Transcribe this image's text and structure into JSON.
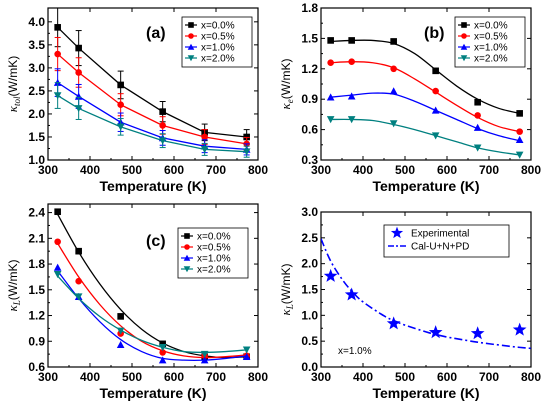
{
  "chart_data": [
    {
      "id": "a",
      "type": "scatter",
      "panel_label": "(a)",
      "xlabel": "Temperature (K)",
      "ylabel": "κ_tol(W/mK)",
      "ylabel_main": "κ",
      "ylabel_sub": "tol",
      "ylabel_unit": "(W/mK)",
      "xlim": [
        300,
        800
      ],
      "ylim": [
        1.0,
        4.3
      ],
      "xticks": [
        "300",
        "400",
        "500",
        "600",
        "700",
        "800"
      ],
      "yticks": [
        "1.0",
        "1.5",
        "2.0",
        "2.5",
        "3.0",
        "3.5",
        "4.0"
      ],
      "legend_position": "top-right",
      "error_bars": true,
      "series": [
        {
          "name": "x=0.0%",
          "color": "#000000",
          "marker": "square",
          "x": [
            323,
            373,
            473,
            573,
            673,
            773
          ],
          "y": [
            3.88,
            3.43,
            2.63,
            2.05,
            1.6,
            1.5
          ],
          "err": [
            0.42,
            0.38,
            0.3,
            0.22,
            0.18,
            0.16
          ]
        },
        {
          "name": "x=0.5%",
          "color": "#ff0000",
          "marker": "circle",
          "x": [
            323,
            373,
            473,
            573,
            673,
            773
          ],
          "y": [
            3.3,
            2.9,
            2.2,
            1.75,
            1.5,
            1.35
          ],
          "err": [
            0.36,
            0.32,
            0.24,
            0.19,
            0.16,
            0.14
          ]
        },
        {
          "name": "x=1.0%",
          "color": "#0000ff",
          "marker": "triangle-up",
          "x": [
            323,
            373,
            473,
            573,
            673,
            773
          ],
          "y": [
            2.68,
            2.38,
            1.82,
            1.48,
            1.3,
            1.23
          ],
          "err": [
            0.3,
            0.26,
            0.2,
            0.16,
            0.14,
            0.12
          ]
        },
        {
          "name": "x=2.0%",
          "color": "#008080",
          "marker": "triangle-down",
          "x": [
            323,
            373,
            473,
            573,
            673,
            773
          ],
          "y": [
            2.4,
            2.12,
            1.72,
            1.42,
            1.23,
            1.18
          ],
          "err": [
            0.28,
            0.24,
            0.18,
            0.15,
            0.13,
            0.12
          ]
        }
      ]
    },
    {
      "id": "b",
      "type": "scatter",
      "panel_label": "(b)",
      "xlabel": "Temperature (K)",
      "ylabel": "κe(W/mK)",
      "ylabel_main": "κ",
      "ylabel_sub": "e",
      "ylabel_unit": "(W/mK)",
      "xlim": [
        300,
        800
      ],
      "ylim": [
        0.3,
        1.8
      ],
      "xticks": [
        "300",
        "400",
        "500",
        "600",
        "700",
        "800"
      ],
      "yticks": [
        "0.3",
        "0.6",
        "0.9",
        "1.2",
        "1.5",
        "1.8"
      ],
      "legend_position": "top-right",
      "series": [
        {
          "name": "x=0.0%",
          "color": "#000000",
          "marker": "square",
          "x": [
            323,
            373,
            473,
            573,
            673,
            773
          ],
          "y": [
            1.48,
            1.48,
            1.47,
            1.18,
            0.87,
            0.76
          ],
          "fit": [
            [
              323,
              1.47
            ],
            [
              373,
              1.48
            ],
            [
              423,
              1.48
            ],
            [
              473,
              1.45
            ],
            [
              523,
              1.35
            ],
            [
              573,
              1.19
            ],
            [
              623,
              1.03
            ],
            [
              673,
              0.9
            ],
            [
              723,
              0.81
            ],
            [
              773,
              0.76
            ]
          ]
        },
        {
          "name": "x=0.5%",
          "color": "#ff0000",
          "marker": "circle",
          "x": [
            323,
            373,
            473,
            573,
            673,
            773
          ],
          "y": [
            1.26,
            1.27,
            1.2,
            0.98,
            0.74,
            0.58
          ],
          "fit": [
            [
              323,
              1.26
            ],
            [
              373,
              1.27
            ],
            [
              423,
              1.26
            ],
            [
              473,
              1.21
            ],
            [
              523,
              1.1
            ],
            [
              573,
              0.97
            ],
            [
              623,
              0.84
            ],
            [
              673,
              0.72
            ],
            [
              723,
              0.63
            ],
            [
              773,
              0.58
            ]
          ]
        },
        {
          "name": "x=1.0%",
          "color": "#0000ff",
          "marker": "triangle-up",
          "x": [
            323,
            373,
            473,
            573,
            673,
            773
          ],
          "y": [
            0.92,
            0.93,
            0.98,
            0.79,
            0.62,
            0.5
          ],
          "fit": [
            [
              323,
              0.92
            ],
            [
              373,
              0.94
            ],
            [
              423,
              0.96
            ],
            [
              473,
              0.95
            ],
            [
              523,
              0.88
            ],
            [
              573,
              0.79
            ],
            [
              623,
              0.7
            ],
            [
              673,
              0.61
            ],
            [
              723,
              0.54
            ],
            [
              773,
              0.49
            ]
          ]
        },
        {
          "name": "x=2.0%",
          "color": "#008080",
          "marker": "triangle-down",
          "x": [
            323,
            373,
            473,
            573,
            673,
            773
          ],
          "y": [
            0.7,
            0.7,
            0.66,
            0.54,
            0.42,
            0.35
          ],
          "fit": [
            [
              323,
              0.7
            ],
            [
              373,
              0.7
            ],
            [
              423,
              0.69
            ],
            [
              473,
              0.65
            ],
            [
              523,
              0.6
            ],
            [
              573,
              0.54
            ],
            [
              623,
              0.48
            ],
            [
              673,
              0.42
            ],
            [
              723,
              0.38
            ],
            [
              773,
              0.35
            ]
          ]
        }
      ]
    },
    {
      "id": "c",
      "type": "scatter",
      "panel_label": "(c)",
      "xlabel": "Temperature (K)",
      "ylabel": "κL(W/mK)",
      "ylabel_main": "κ",
      "ylabel_sub": "L",
      "ylabel_unit": "(W/mK)",
      "xlim": [
        300,
        800
      ],
      "ylim": [
        0.6,
        2.5
      ],
      "xticks": [
        "300",
        "400",
        "500",
        "600",
        "700",
        "800"
      ],
      "yticks": [
        "0.6",
        "0.9",
        "1.2",
        "1.5",
        "1.8",
        "2.1",
        "2.4"
      ],
      "legend_position": "top-right",
      "series": [
        {
          "name": "x=0.0%",
          "color": "#000000",
          "marker": "square",
          "x": [
            323,
            373,
            473,
            573,
            673,
            773
          ],
          "y": [
            2.41,
            1.95,
            1.19,
            0.87,
            0.72,
            0.72
          ],
          "fit": [
            [
              323,
              2.38
            ],
            [
              373,
              1.94
            ],
            [
              423,
              1.57
            ],
            [
              473,
              1.27
            ],
            [
              523,
              1.04
            ],
            [
              573,
              0.88
            ],
            [
              623,
              0.78
            ],
            [
              673,
              0.73
            ],
            [
              723,
              0.71
            ],
            [
              773,
              0.72
            ]
          ]
        },
        {
          "name": "x=0.5%",
          "color": "#ff0000",
          "marker": "circle",
          "x": [
            323,
            373,
            473,
            573,
            673,
            773
          ],
          "y": [
            2.06,
            1.6,
            0.99,
            0.77,
            0.73,
            0.73
          ],
          "fit": [
            [
              323,
              2.04
            ],
            [
              373,
              1.65
            ],
            [
              423,
              1.33
            ],
            [
              473,
              1.08
            ],
            [
              523,
              0.9
            ],
            [
              573,
              0.79
            ],
            [
              623,
              0.73
            ],
            [
              673,
              0.71
            ],
            [
              723,
              0.72
            ],
            [
              773,
              0.74
            ]
          ]
        },
        {
          "name": "x=1.0%",
          "color": "#0000ff",
          "marker": "triangle-up",
          "x": [
            323,
            373,
            473,
            573,
            673,
            773
          ],
          "y": [
            1.76,
            1.42,
            0.86,
            0.68,
            0.68,
            0.72
          ],
          "fit": [
            [
              323,
              1.72
            ],
            [
              373,
              1.4
            ],
            [
              423,
              1.13
            ],
            [
              473,
              0.92
            ],
            [
              523,
              0.78
            ],
            [
              573,
              0.7
            ],
            [
              623,
              0.68
            ],
            [
              673,
              0.68
            ],
            [
              723,
              0.7
            ],
            [
              773,
              0.73
            ]
          ]
        },
        {
          "name": "x=2.0%",
          "color": "#008080",
          "marker": "triangle-down",
          "x": [
            323,
            373,
            473,
            573,
            673,
            773
          ],
          "y": [
            1.68,
            1.42,
            1.02,
            0.83,
            0.75,
            0.8
          ],
          "fit": [
            [
              323,
              1.66
            ],
            [
              373,
              1.4
            ],
            [
              423,
              1.19
            ],
            [
              473,
              1.03
            ],
            [
              523,
              0.91
            ],
            [
              573,
              0.83
            ],
            [
              623,
              0.78
            ],
            [
              673,
              0.77
            ],
            [
              723,
              0.78
            ],
            [
              773,
              0.8
            ]
          ]
        }
      ]
    },
    {
      "id": "d",
      "type": "scatter",
      "panel_label": "(d)",
      "xlabel": "Temperature (K)",
      "ylabel": "κL(W/mK)",
      "ylabel_main": "κ",
      "ylabel_sub": "L",
      "ylabel_unit": "(W/mK)",
      "xlim": [
        300,
        800
      ],
      "ylim": [
        0.0,
        3.0
      ],
      "xticks": [
        "300",
        "400",
        "500",
        "600",
        "700",
        "800"
      ],
      "yticks": [
        "0.0",
        "0.5",
        "1.0",
        "1.5",
        "2.0",
        "2.5",
        "3.0"
      ],
      "legend_position": "top-right",
      "annotation": "x=1.0%",
      "series": [
        {
          "name": "Experimental",
          "color": "#0000ff",
          "marker": "star",
          "x": [
            323,
            373,
            473,
            573,
            673,
            773
          ],
          "y": [
            1.76,
            1.4,
            0.84,
            0.67,
            0.65,
            0.72
          ]
        },
        {
          "name": "Cal-U+N+PD",
          "color": "#0000ff",
          "line": "dash-dot",
          "x": [
            300,
            323,
            350,
            373,
            400,
            450,
            473,
            500,
            550,
            573,
            600,
            650,
            673,
            700,
            750,
            773,
            800
          ],
          "y": [
            2.48,
            2.05,
            1.7,
            1.47,
            1.26,
            0.99,
            0.9,
            0.81,
            0.68,
            0.63,
            0.58,
            0.51,
            0.48,
            0.45,
            0.4,
            0.38,
            0.36
          ]
        }
      ]
    }
  ]
}
